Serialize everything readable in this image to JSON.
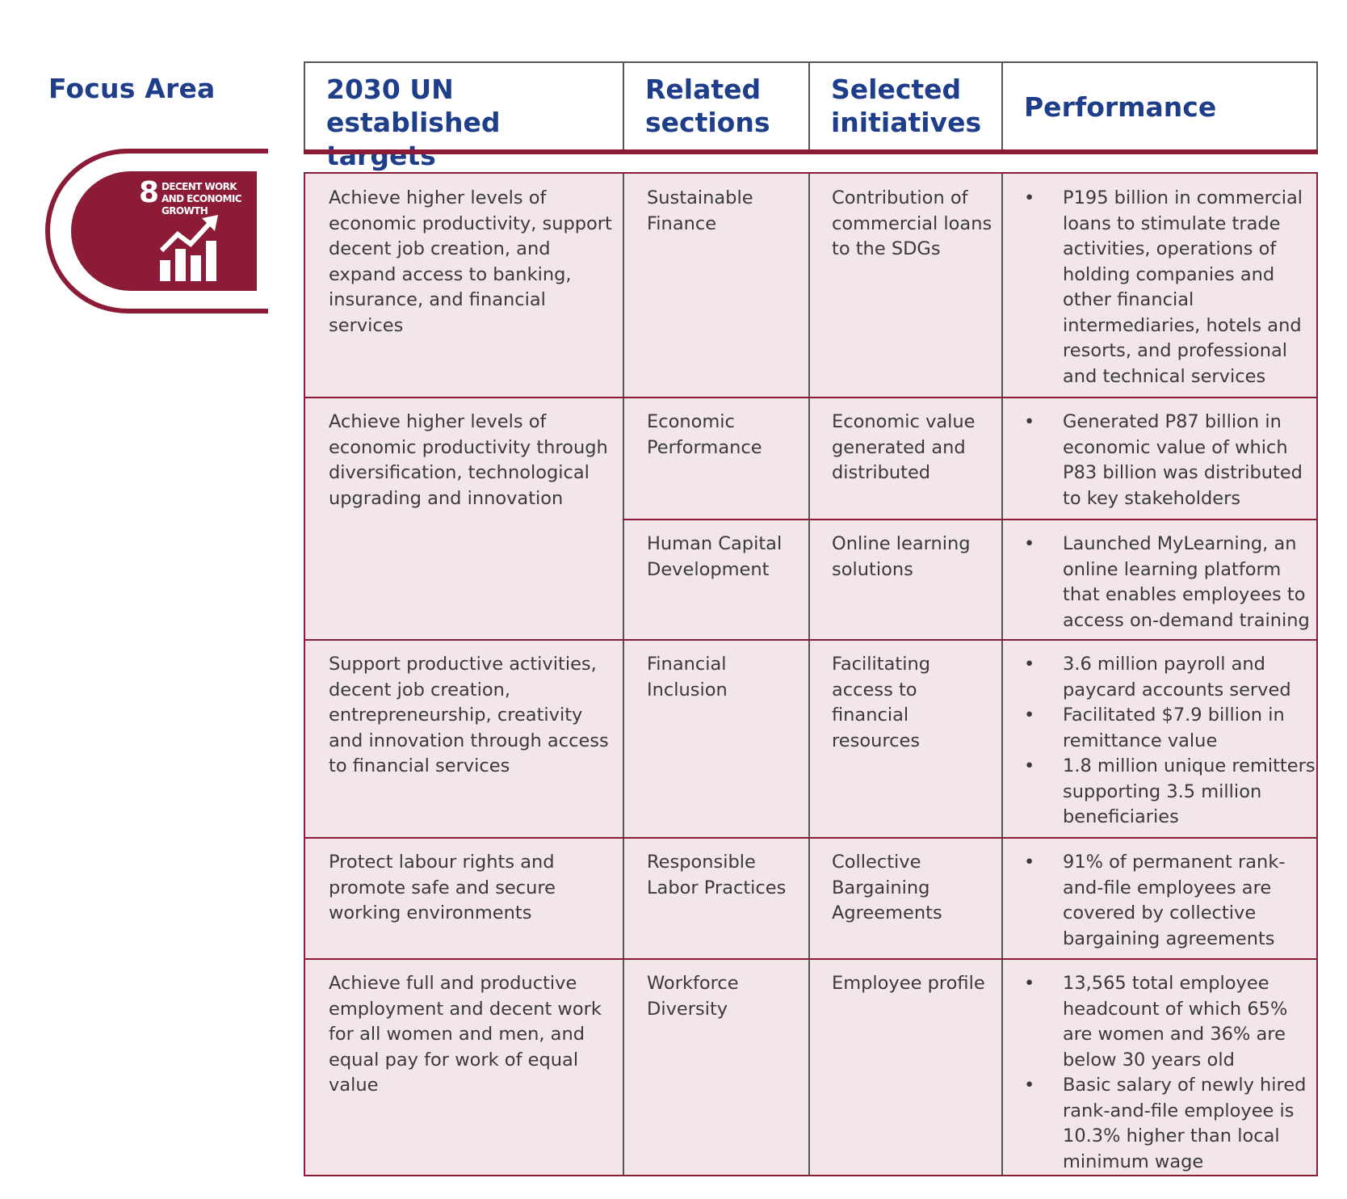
{
  "focus_area_title": "Focus Area",
  "headers": {
    "targets": "2030 UN established targets",
    "sections": "Related sections",
    "initiatives": "Selected initiatives",
    "performance": "Performance"
  },
  "sdg_badge": {
    "number": "8",
    "label": "DECENT WORK AND ECONOMIC GROWTH",
    "icon": "rising-bar-chart-icon",
    "color": "#8c1b38"
  },
  "colors": {
    "title_blue": "#1f3e8a",
    "accent_maroon": "#8c1b38",
    "row_fill": "#f3e6ea"
  },
  "rows": [
    {
      "target": "Achieve higher levels of economic productivity, support decent job creation, and expand access to banking, insurance, and financial services",
      "section": "Sustainable Finance",
      "initiative": "Contribution of commercial loans to the SDGs",
      "performance": [
        "P195 billion in commercial loans to stimulate trade activities, operations of holding companies and other financial intermediaries, hotels and resorts, and professional and technical services"
      ]
    },
    {
      "target": "Achieve higher levels of economic productivity through diversification, technological upgrading and innovation",
      "sub": [
        {
          "section": "Economic Performance",
          "initiative": "Economic value generated and distributed",
          "performance": [
            "Generated P87 billion in economic value of which P83 billion was distributed to key stakeholders"
          ]
        },
        {
          "section": "Human Capital Development",
          "initiative": "Online learning solutions",
          "performance": [
            "Launched MyLearning, an online learning platform that enables employees to access on-demand training"
          ]
        }
      ]
    },
    {
      "target": "Support productive activities, decent job creation, entrepreneurship, creativity and innovation through access to financial services",
      "section": "Financial Inclusion",
      "initiative": "Facilitating access to financial resources",
      "performance": [
        "3.6 million payroll and paycard accounts served",
        "Facilitated $7.9 billion in remittance value",
        "1.8 million unique remitters supporting 3.5 million beneficiaries"
      ]
    },
    {
      "target": "Protect labour rights and promote safe and secure working environments",
      "section": "Responsible Labor Practices",
      "initiative": "Collective Bargaining Agreements",
      "performance": [
        "91% of permanent rank-and-file employees are covered by collective bargaining agreements"
      ]
    },
    {
      "target": "Achieve full and productive employment and decent work for all women and men, and equal pay for work of equal value",
      "section": "Workforce Diversity",
      "initiative": "Employee profile",
      "performance": [
        "13,565 total employee headcount of which 65% are women and 36% are below 30 years old",
        "Basic salary of newly hired rank-and-file employee is 10.3% higher than local minimum wage"
      ]
    }
  ]
}
